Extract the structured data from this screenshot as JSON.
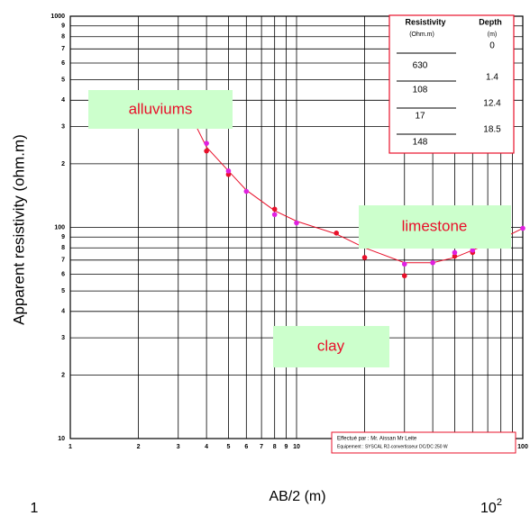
{
  "chart_data": {
    "type": "line",
    "ylabel": "Apparent resistivity (ohm.m)",
    "xlabel": "AB/2 (m)",
    "x_corner_min": "1",
    "x_corner_max": {
      "base": "10",
      "exponent": "2"
    },
    "xscale": "log",
    "yscale": "log",
    "grid": true,
    "xlim": [
      1,
      100
    ],
    "ylim": [
      10,
      1000
    ],
    "xticks": [
      1,
      2,
      3,
      4,
      5,
      6,
      7,
      8,
      9,
      10,
      {
        "value": 20,
        "label": "2"
      },
      {
        "value": 30,
        "label": "3"
      },
      {
        "value": 40,
        "label": "4"
      },
      {
        "value": 50,
        "label": "5"
      },
      {
        "value": 60,
        "label": "6"
      },
      {
        "value": 70,
        "label": "7"
      },
      {
        "value": 80,
        "label": "8"
      },
      {
        "value": 90,
        "label": "9"
      },
      100
    ],
    "yticks": [
      10,
      {
        "value": 20,
        "label": "2"
      },
      {
        "value": 30,
        "label": "3"
      },
      {
        "value": 40,
        "label": "4"
      },
      {
        "value": 50,
        "label": "5"
      },
      {
        "value": 60,
        "label": "6"
      },
      {
        "value": 70,
        "label": "7"
      },
      {
        "value": 80,
        "label": "8"
      },
      {
        "value": 90,
        "label": "9"
      },
      100,
      {
        "value": 200,
        "label": "2"
      },
      {
        "value": 300,
        "label": "3"
      },
      {
        "value": 400,
        "label": "4"
      },
      {
        "value": 500,
        "label": "5"
      },
      {
        "value": 600,
        "label": "6"
      },
      {
        "value": 700,
        "label": "7"
      },
      {
        "value": 800,
        "label": "8"
      },
      {
        "value": 900,
        "label": "9"
      },
      1000
    ],
    "series": [
      {
        "color": "#e8102a",
        "style": "line",
        "x": [
          3.5,
          4,
          5,
          6,
          8,
          10,
          15,
          20,
          30,
          40,
          50,
          60,
          80,
          100
        ],
        "values": [
          320,
          240,
          185,
          150,
          120,
          107,
          93,
          80,
          68,
          68,
          72,
          78,
          88,
          99
        ]
      },
      {
        "color": "#e8102a",
        "style": "points",
        "x": [
          4,
          5,
          8,
          15,
          20,
          30,
          50,
          60,
          80
        ],
        "values": [
          230,
          178,
          122,
          94,
          72,
          59,
          73,
          76,
          90
        ]
      },
      {
        "color": "#e020e0",
        "style": "points",
        "x": [
          4,
          5,
          6,
          8,
          10,
          20,
          30,
          40,
          50,
          60,
          100
        ],
        "values": [
          250,
          185,
          148,
          115,
          105,
          82,
          67,
          68,
          76,
          78,
          99
        ]
      }
    ],
    "annotations": [
      "alluviums",
      "limestone",
      "clay"
    ],
    "model_table": {
      "headers": [
        "Resistivity",
        "Depth"
      ],
      "units": [
        "(Ohm.m)",
        "(m)"
      ],
      "resistivity": [
        "630",
        "108",
        "17",
        "148"
      ],
      "depth": [
        "0",
        "1.4",
        "12.4",
        "18.5"
      ]
    },
    "footer": [
      "Effectué par : Mr. Aissan Mr Leite",
      "Equipement : SYSCAL R2-convertisseur DC/DC 250 W"
    ]
  }
}
